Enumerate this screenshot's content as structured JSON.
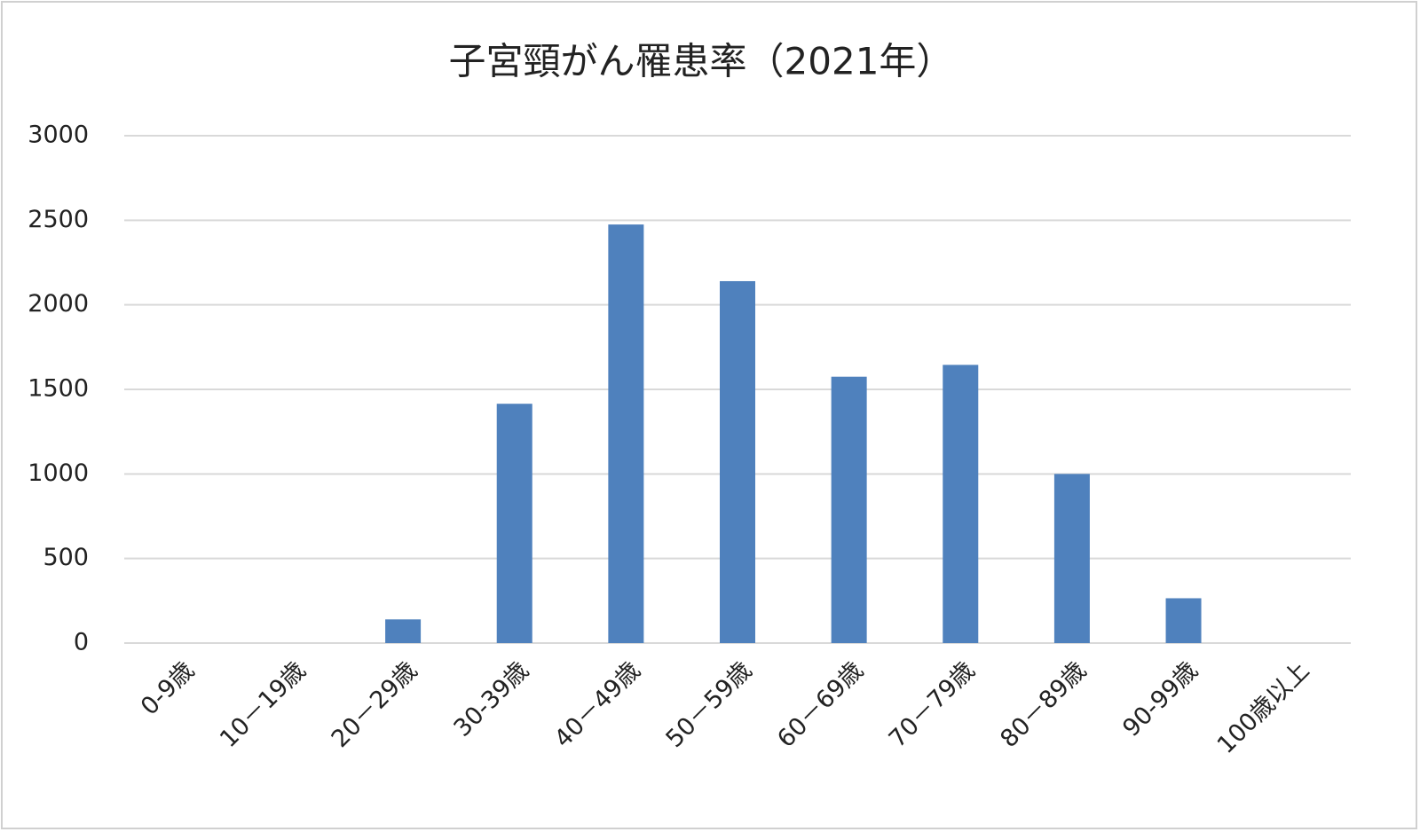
{
  "chart_data": {
    "type": "bar",
    "title": "子宮頸がん罹患率（2021年）",
    "categories": [
      "0-9歳",
      "10－19歳",
      "20－29歳",
      "30-39歳",
      "40－49歳",
      "50－59歳",
      "60－69歳",
      "70－79歳",
      "80－89歳",
      "90-99歳",
      "100歳以上"
    ],
    "values": [
      0,
      0,
      140,
      1415,
      2475,
      2140,
      1575,
      1645,
      1000,
      265,
      0
    ],
    "color": "#4f81bd",
    "ylim": [
      0,
      3000
    ],
    "yticks": [
      0,
      500,
      1000,
      1500,
      2000,
      2500,
      3000
    ],
    "grid": true
  }
}
